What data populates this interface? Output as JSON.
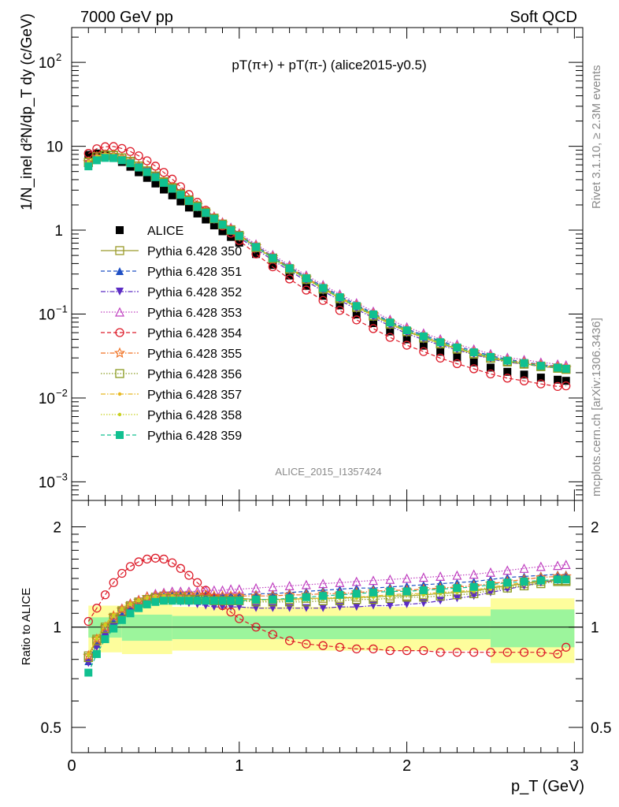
{
  "header": {
    "left": "7000 GeV pp",
    "right": "Soft QCD"
  },
  "side_labels": {
    "rivet": "Rivet 3.1.10, ≥ 2.3M events",
    "mcplots": "mcplots.cern.ch [arXiv:1306.3436]"
  },
  "chart_data": [
    {
      "type": "scatter",
      "title": "pT(π+) + pT(π-) (alice2015-y0.5)",
      "analysis_label": "ALICE_2015_I1357424",
      "ylabel": "1/N_inel d²N/dp_T dy (c/GeV)",
      "xlabel": "p_T (GeV)",
      "xlim": [
        0,
        3.05
      ],
      "ylim": [
        0.0006,
        260
      ],
      "yscale": "log",
      "yticks": [
        "10^-3",
        "10^-2",
        "10^-1",
        "1",
        "10",
        "10^2"
      ],
      "legend_position": "left-middle",
      "x": [
        0.1,
        0.15,
        0.2,
        0.25,
        0.3,
        0.35,
        0.4,
        0.45,
        0.5,
        0.55,
        0.6,
        0.65,
        0.7,
        0.75,
        0.8,
        0.85,
        0.9,
        0.95,
        1.0,
        1.1,
        1.2,
        1.3,
        1.4,
        1.5,
        1.6,
        1.7,
        1.8,
        1.9,
        2.0,
        2.1,
        2.2,
        2.3,
        2.4,
        2.5,
        2.6,
        2.7,
        2.8,
        2.9,
        2.95
      ],
      "alice": [
        7.9,
        8.2,
        7.9,
        7.3,
        6.5,
        5.7,
        4.9,
        4.2,
        3.6,
        3.05,
        2.6,
        2.2,
        1.86,
        1.58,
        1.34,
        1.14,
        0.97,
        0.83,
        0.71,
        0.52,
        0.385,
        0.288,
        0.217,
        0.165,
        0.127,
        0.099,
        0.078,
        0.062,
        0.05,
        0.042,
        0.0355,
        0.0305,
        0.0265,
        0.023,
        0.0205,
        0.019,
        0.0175,
        0.0165,
        0.016
      ],
      "series": [
        {
          "name": "ALICE",
          "color": "#000000",
          "marker": "square-filled"
        },
        {
          "name": "Pythia 6.428 350",
          "color": "#9a9a2a",
          "marker": "square-open",
          "line": "solid"
        },
        {
          "name": "Pythia 6.428 351",
          "color": "#1f4fc4",
          "marker": "triangle-up-filled",
          "line": "dashed"
        },
        {
          "name": "Pythia 6.428 352",
          "color": "#5b2bc4",
          "marker": "triangle-down-filled",
          "line": "dashdot"
        },
        {
          "name": "Pythia 6.428 353",
          "color": "#c040c0",
          "marker": "triangle-up-open",
          "line": "dotted"
        },
        {
          "name": "Pythia 6.428 354",
          "color": "#dd1c2a",
          "marker": "circle-open",
          "line": "dashed"
        },
        {
          "name": "Pythia 6.428 355",
          "color": "#f07020",
          "marker": "star-open",
          "line": "dashdot"
        },
        {
          "name": "Pythia 6.428 356",
          "color": "#8a9a20",
          "marker": "square-open",
          "line": "dotted"
        },
        {
          "name": "Pythia 6.428 357",
          "color": "#e8b820",
          "marker": "dot",
          "line": "dashdot"
        },
        {
          "name": "Pythia 6.428 358",
          "color": "#c8d020",
          "marker": "dot",
          "line": "dotted"
        },
        {
          "name": "Pythia 6.428 359",
          "color": "#10c090",
          "marker": "square-filled",
          "line": "dashed"
        }
      ]
    },
    {
      "type": "line",
      "ylabel": "Ratio to ALICE",
      "xlabel": "p_T (GeV)",
      "xlim": [
        0,
        3.05
      ],
      "ylim": [
        0.42,
        2.4
      ],
      "yscale": "log",
      "yticks": [
        0.5,
        1,
        2
      ],
      "xticks": [
        0,
        1,
        2,
        3
      ],
      "uncertainty_bands": {
        "x_edges": [
          0.1,
          0.3,
          0.6,
          2.5,
          3.0
        ],
        "green": [
          0.07,
          0.09,
          0.08,
          0.13
        ],
        "yellow": [
          0.16,
          0.17,
          0.15,
          0.22
        ]
      },
      "ratios": {
        "Pythia 6.428 350": [
          0.82,
          0.92,
          1.0,
          1.07,
          1.12,
          1.16,
          1.19,
          1.21,
          1.23,
          1.24,
          1.24,
          1.24,
          1.24,
          1.23,
          1.23,
          1.22,
          1.22,
          1.22,
          1.22,
          1.21,
          1.21,
          1.21,
          1.22,
          1.22,
          1.22,
          1.23,
          1.23,
          1.24,
          1.24,
          1.25,
          1.26,
          1.27,
          1.28,
          1.31,
          1.33,
          1.35,
          1.37,
          1.38,
          1.38
        ],
        "Pythia 6.428 351": [
          0.79,
          0.89,
          0.97,
          1.04,
          1.09,
          1.14,
          1.17,
          1.2,
          1.23,
          1.24,
          1.25,
          1.25,
          1.25,
          1.25,
          1.25,
          1.25,
          1.25,
          1.25,
          1.25,
          1.26,
          1.26,
          1.27,
          1.28,
          1.29,
          1.3,
          1.31,
          1.31,
          1.32,
          1.33,
          1.34,
          1.35,
          1.36,
          1.37,
          1.39,
          1.41,
          1.42,
          1.43,
          1.44,
          1.44
        ],
        "Pythia 6.428 352": [
          0.78,
          0.87,
          0.94,
          1.0,
          1.06,
          1.11,
          1.15,
          1.19,
          1.21,
          1.21,
          1.2,
          1.19,
          1.18,
          1.17,
          1.16,
          1.15,
          1.15,
          1.15,
          1.15,
          1.14,
          1.14,
          1.14,
          1.14,
          1.14,
          1.15,
          1.15,
          1.16,
          1.16,
          1.17,
          1.18,
          1.2,
          1.22,
          1.24,
          1.27,
          1.3,
          1.33,
          1.36,
          1.38,
          1.39
        ],
        "Pythia 6.428 353": [
          0.81,
          0.91,
          1.0,
          1.08,
          1.14,
          1.18,
          1.21,
          1.24,
          1.26,
          1.27,
          1.28,
          1.28,
          1.28,
          1.28,
          1.29,
          1.29,
          1.29,
          1.3,
          1.3,
          1.31,
          1.32,
          1.33,
          1.34,
          1.35,
          1.36,
          1.37,
          1.38,
          1.39,
          1.4,
          1.41,
          1.42,
          1.43,
          1.44,
          1.46,
          1.48,
          1.5,
          1.52,
          1.53,
          1.54
        ],
        "Pythia 6.428 354": [
          1.04,
          1.14,
          1.25,
          1.36,
          1.45,
          1.52,
          1.57,
          1.6,
          1.61,
          1.6,
          1.56,
          1.5,
          1.43,
          1.36,
          1.29,
          1.22,
          1.16,
          1.11,
          1.06,
          1.0,
          0.95,
          0.91,
          0.89,
          0.88,
          0.87,
          0.86,
          0.86,
          0.85,
          0.85,
          0.85,
          0.84,
          0.84,
          0.84,
          0.84,
          0.84,
          0.84,
          0.84,
          0.83,
          0.87
        ],
        "Pythia 6.428 355": [
          0.82,
          0.92,
          1.0,
          1.08,
          1.13,
          1.17,
          1.2,
          1.23,
          1.24,
          1.25,
          1.25,
          1.25,
          1.25,
          1.25,
          1.25,
          1.24,
          1.24,
          1.24,
          1.24,
          1.24,
          1.24,
          1.25,
          1.25,
          1.26,
          1.26,
          1.27,
          1.28,
          1.29,
          1.29,
          1.3,
          1.31,
          1.32,
          1.33,
          1.35,
          1.37,
          1.39,
          1.41,
          1.42,
          1.42
        ],
        "Pythia 6.428 356": [
          0.81,
          0.91,
          0.99,
          1.06,
          1.11,
          1.15,
          1.18,
          1.21,
          1.22,
          1.22,
          1.22,
          1.22,
          1.21,
          1.21,
          1.21,
          1.2,
          1.2,
          1.2,
          1.2,
          1.19,
          1.19,
          1.19,
          1.19,
          1.2,
          1.2,
          1.21,
          1.21,
          1.22,
          1.23,
          1.23,
          1.24,
          1.25,
          1.26,
          1.29,
          1.31,
          1.33,
          1.35,
          1.37,
          1.37
        ],
        "Pythia 6.428 357": [
          0.83,
          0.93,
          1.02,
          1.09,
          1.14,
          1.18,
          1.21,
          1.23,
          1.24,
          1.24,
          1.24,
          1.23,
          1.23,
          1.22,
          1.22,
          1.21,
          1.21,
          1.21,
          1.21,
          1.21,
          1.21,
          1.21,
          1.22,
          1.22,
          1.23,
          1.23,
          1.24,
          1.25,
          1.26,
          1.26,
          1.27,
          1.28,
          1.29,
          1.32,
          1.34,
          1.36,
          1.38,
          1.39,
          1.39
        ],
        "Pythia 6.428 358": [
          0.82,
          0.92,
          1.01,
          1.08,
          1.13,
          1.17,
          1.2,
          1.22,
          1.23,
          1.23,
          1.23,
          1.22,
          1.22,
          1.22,
          1.21,
          1.21,
          1.2,
          1.2,
          1.2,
          1.2,
          1.2,
          1.2,
          1.21,
          1.21,
          1.22,
          1.22,
          1.23,
          1.24,
          1.25,
          1.25,
          1.26,
          1.27,
          1.28,
          1.3,
          1.32,
          1.34,
          1.36,
          1.37,
          1.37
        ],
        "Pythia 6.428 359": [
          0.73,
          0.83,
          0.92,
          0.99,
          1.05,
          1.1,
          1.14,
          1.17,
          1.19,
          1.2,
          1.2,
          1.2,
          1.2,
          1.2,
          1.2,
          1.2,
          1.2,
          1.2,
          1.2,
          1.21,
          1.21,
          1.22,
          1.23,
          1.24,
          1.25,
          1.26,
          1.27,
          1.28,
          1.28,
          1.29,
          1.3,
          1.31,
          1.32,
          1.34,
          1.36,
          1.37,
          1.38,
          1.39,
          1.39
        ]
      }
    }
  ]
}
